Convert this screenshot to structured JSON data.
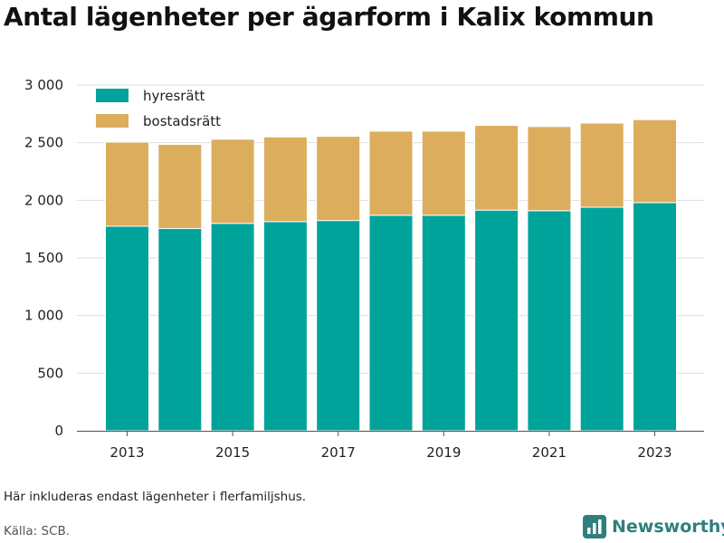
{
  "title": "Antal lägenheter per ägarform i Kalix kommun",
  "note": "Här inkluderas endast lägenheter i flerfamiljshus.",
  "source": "Källa: SCB.",
  "brand": {
    "name": "Newsworthy",
    "icon": "bar-chart-logo-icon",
    "color": "#2f7f7e"
  },
  "colors": {
    "hyresratt": "#00a39a",
    "bostadsratt": "#dbad5c",
    "grid": "#dddddd",
    "axis": "#555555"
  },
  "chart_data": {
    "type": "bar",
    "stacked": true,
    "categories": [
      "2013",
      "2014",
      "2015",
      "2016",
      "2017",
      "2018",
      "2019",
      "2020",
      "2021",
      "2022",
      "2023"
    ],
    "series": [
      {
        "name": "hyresrätt",
        "color": "#00a39a",
        "values": [
          1775,
          1755,
          1800,
          1815,
          1825,
          1870,
          1870,
          1915,
          1910,
          1940,
          1980
        ]
      },
      {
        "name": "bostadsrätt",
        "color": "#dbad5c",
        "values": [
          730,
          730,
          730,
          735,
          730,
          730,
          730,
          735,
          730,
          730,
          720
        ]
      }
    ],
    "x_tick_labels": [
      "2013",
      "2015",
      "2017",
      "2019",
      "2021",
      "2023"
    ],
    "y_ticks": [
      0,
      500,
      1000,
      1500,
      2000,
      2500,
      3000
    ],
    "y_tick_labels": [
      "0",
      "500",
      "1 000",
      "1 500",
      "2 000",
      "2 500",
      "3 000"
    ],
    "ylim": [
      0,
      3000
    ],
    "xlabel": "",
    "ylabel": "",
    "grid": true,
    "legend_position": "top-left"
  }
}
